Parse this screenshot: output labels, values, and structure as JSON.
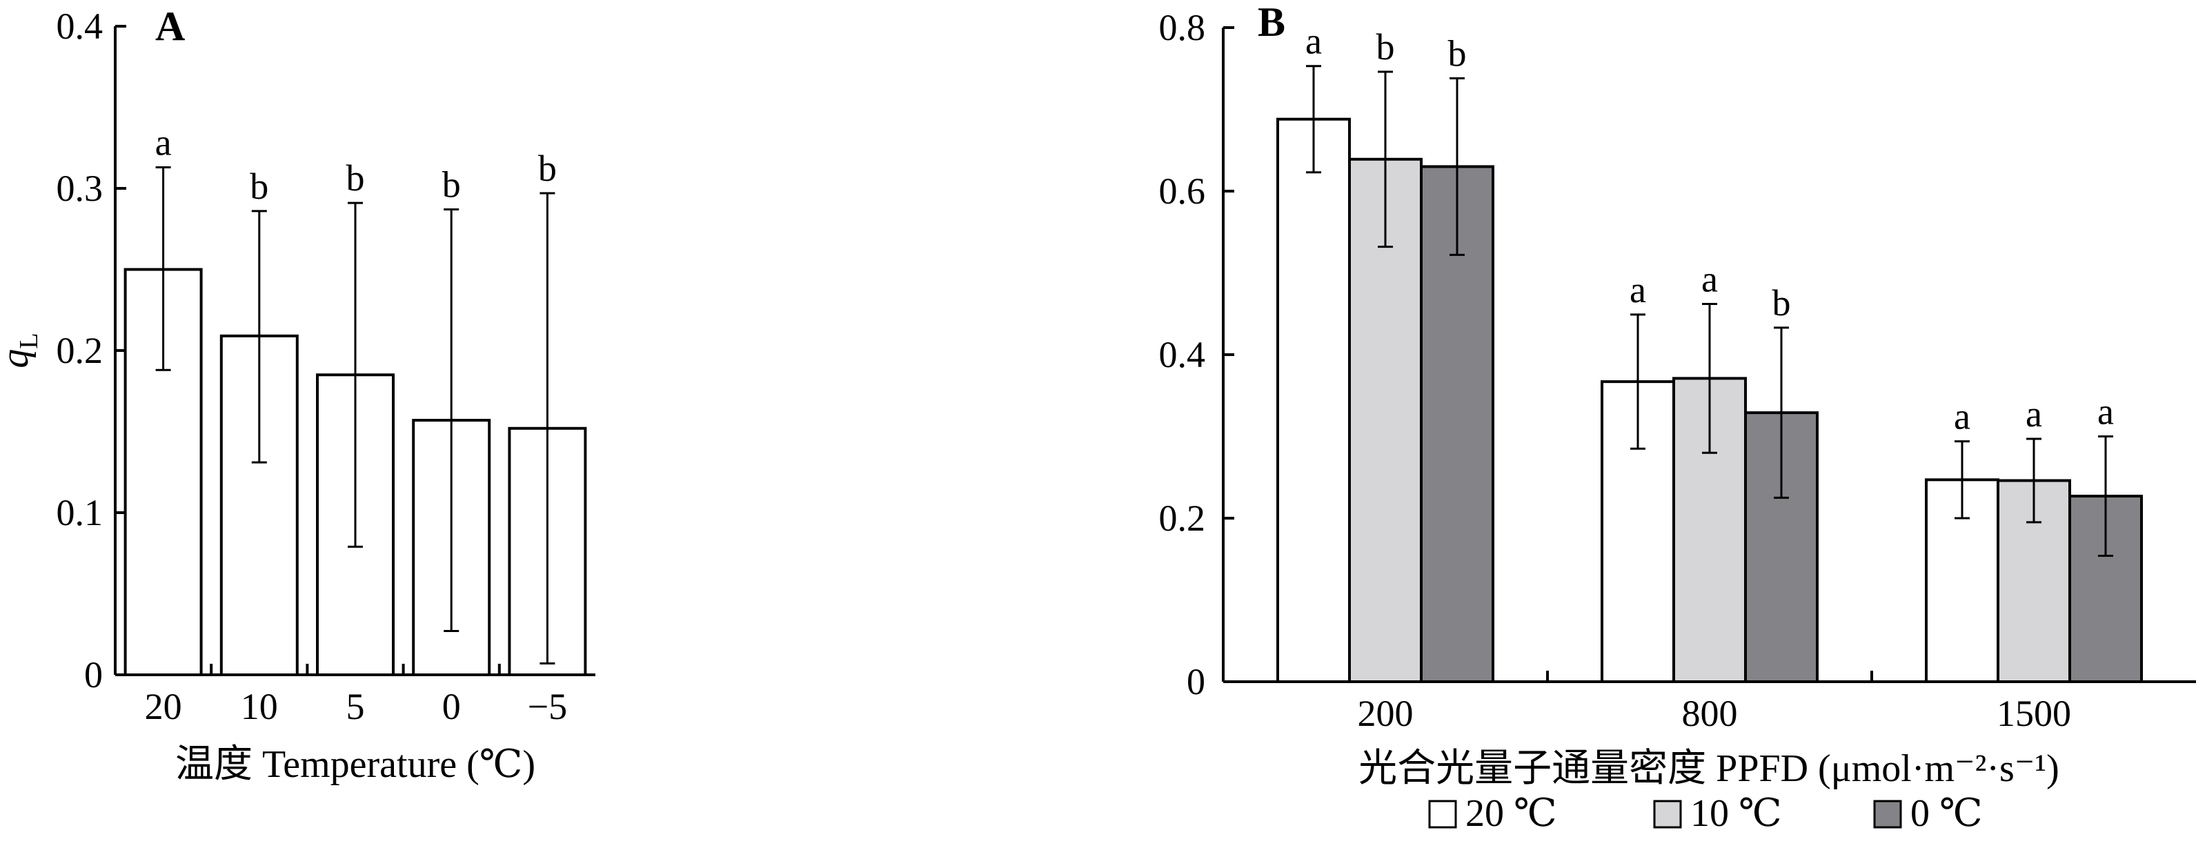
{
  "chart_data": [
    {
      "type": "bar",
      "panel_label": "A",
      "ylabel": "q",
      "ylabel_sub": "L",
      "xlabel": "温度 Temperature (℃)",
      "categories": [
        "20",
        "10",
        "5",
        "0",
        "−5"
      ],
      "values": [
        0.25,
        0.209,
        0.185,
        0.157,
        0.152
      ],
      "errors_upper": [
        0.313,
        0.286,
        0.291,
        0.287,
        0.297
      ],
      "errors_lower": [
        0.188,
        0.131,
        0.079,
        0.027,
        0.007
      ],
      "significance": [
        "a",
        "b",
        "b",
        "b",
        "b"
      ],
      "ylim": [
        0,
        0.4
      ],
      "yticks": [
        "0",
        "0.1",
        "0.2",
        "0.3",
        "0.4"
      ],
      "ytick_values": [
        0,
        0.1,
        0.2,
        0.3,
        0.4
      ],
      "grid": false,
      "bar_color": "#ffffff"
    },
    {
      "type": "bar",
      "panel_label": "B",
      "xlabel": "光合光量子通量密度 PPFD (μmol·m⁻²·s⁻¹)",
      "categories": [
        "200",
        "800",
        "1500"
      ],
      "series": [
        {
          "name": "20 ℃",
          "color": "#ffffff",
          "values": [
            0.688,
            0.367,
            0.247
          ],
          "errors_upper": [
            0.753,
            0.449,
            0.294
          ],
          "errors_lower": [
            0.623,
            0.285,
            0.2
          ],
          "significance": [
            "a",
            "a",
            "a"
          ]
        },
        {
          "name": "10 ℃",
          "color": "#d6d6d9",
          "values": [
            0.639,
            0.371,
            0.246
          ],
          "errors_upper": [
            0.746,
            0.462,
            0.297
          ],
          "errors_lower": [
            0.532,
            0.28,
            0.195
          ],
          "significance": [
            "b",
            "a",
            "a"
          ]
        },
        {
          "name": "0 ℃",
          "color": "#848387",
          "values": [
            0.63,
            0.329,
            0.227
          ],
          "errors_upper": [
            0.738,
            0.433,
            0.3
          ],
          "errors_lower": [
            0.522,
            0.225,
            0.154
          ],
          "significance": [
            "b",
            "b",
            "a"
          ]
        }
      ],
      "ylim": [
        0,
        0.8
      ],
      "yticks": [
        "0",
        "0.2",
        "0.4",
        "0.6",
        "0.8"
      ],
      "ytick_values": [
        0,
        0.2,
        0.4,
        0.6,
        0.8
      ],
      "legend_position": "bottom",
      "grid": false
    }
  ]
}
